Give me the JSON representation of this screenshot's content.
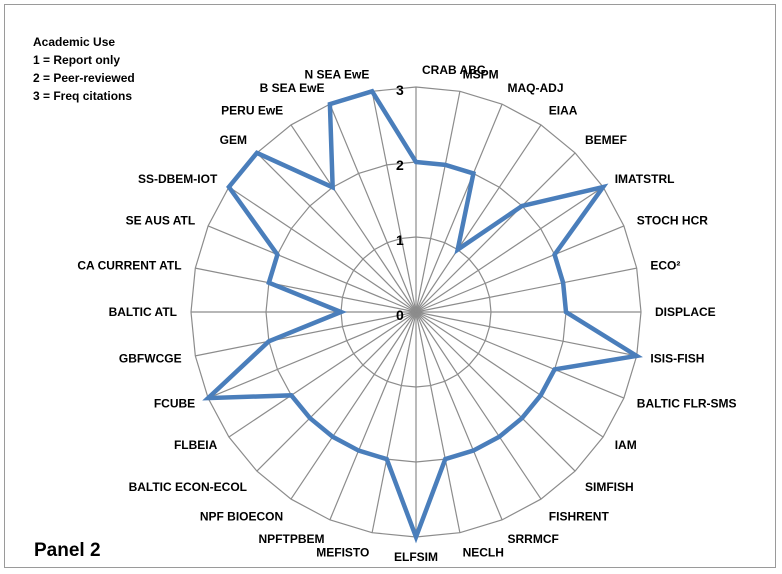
{
  "legend": {
    "title": "Academic Use",
    "items": [
      "1 = Report only",
      "2 = Peer-reviewed",
      "3 = Freq citations"
    ]
  },
  "panel_label": "Panel 2",
  "colors": {
    "series": "#4a7ebb",
    "grid": "#8c8c8c"
  },
  "chart_data": {
    "type": "radar",
    "title": "",
    "rlim": [
      0,
      3
    ],
    "ticks": [
      0,
      1,
      2,
      3
    ],
    "grid": true,
    "categories": [
      "CRAB ABC",
      "MSPM",
      "MAQ-ADJ",
      "EIAA",
      "BEMEF",
      "IMATSTRL",
      "STOCH HCR",
      "ECO²",
      "DISPLACE",
      "ISIS-FISH",
      "BALTIC FLR-SMS",
      "IAM",
      "SIMFISH",
      "FISHRENT",
      "SRRMCF",
      "NECLH",
      "ELFSIM",
      "MEFISTO",
      "NPFTPBEM",
      "NPF BIOECON",
      "BALTIC ECON-ECOL",
      "FLBEIA",
      "FCUBE",
      "GBFWCGE",
      "BALTIC ATL",
      "CA CURRENT ATL",
      "SE AUS ATL",
      "SS-DBEM-IOT",
      "GEM",
      "PERU EwE",
      "B SEA EwE",
      "N SEA EwE"
    ],
    "values": [
      2,
      2,
      2,
      1,
      2,
      3,
      2,
      2,
      2,
      3,
      2,
      2,
      2,
      2,
      2,
      2,
      3,
      2,
      2,
      2,
      2,
      2,
      3,
      2,
      1,
      2,
      2,
      3,
      3,
      2,
      3,
      3
    ]
  }
}
